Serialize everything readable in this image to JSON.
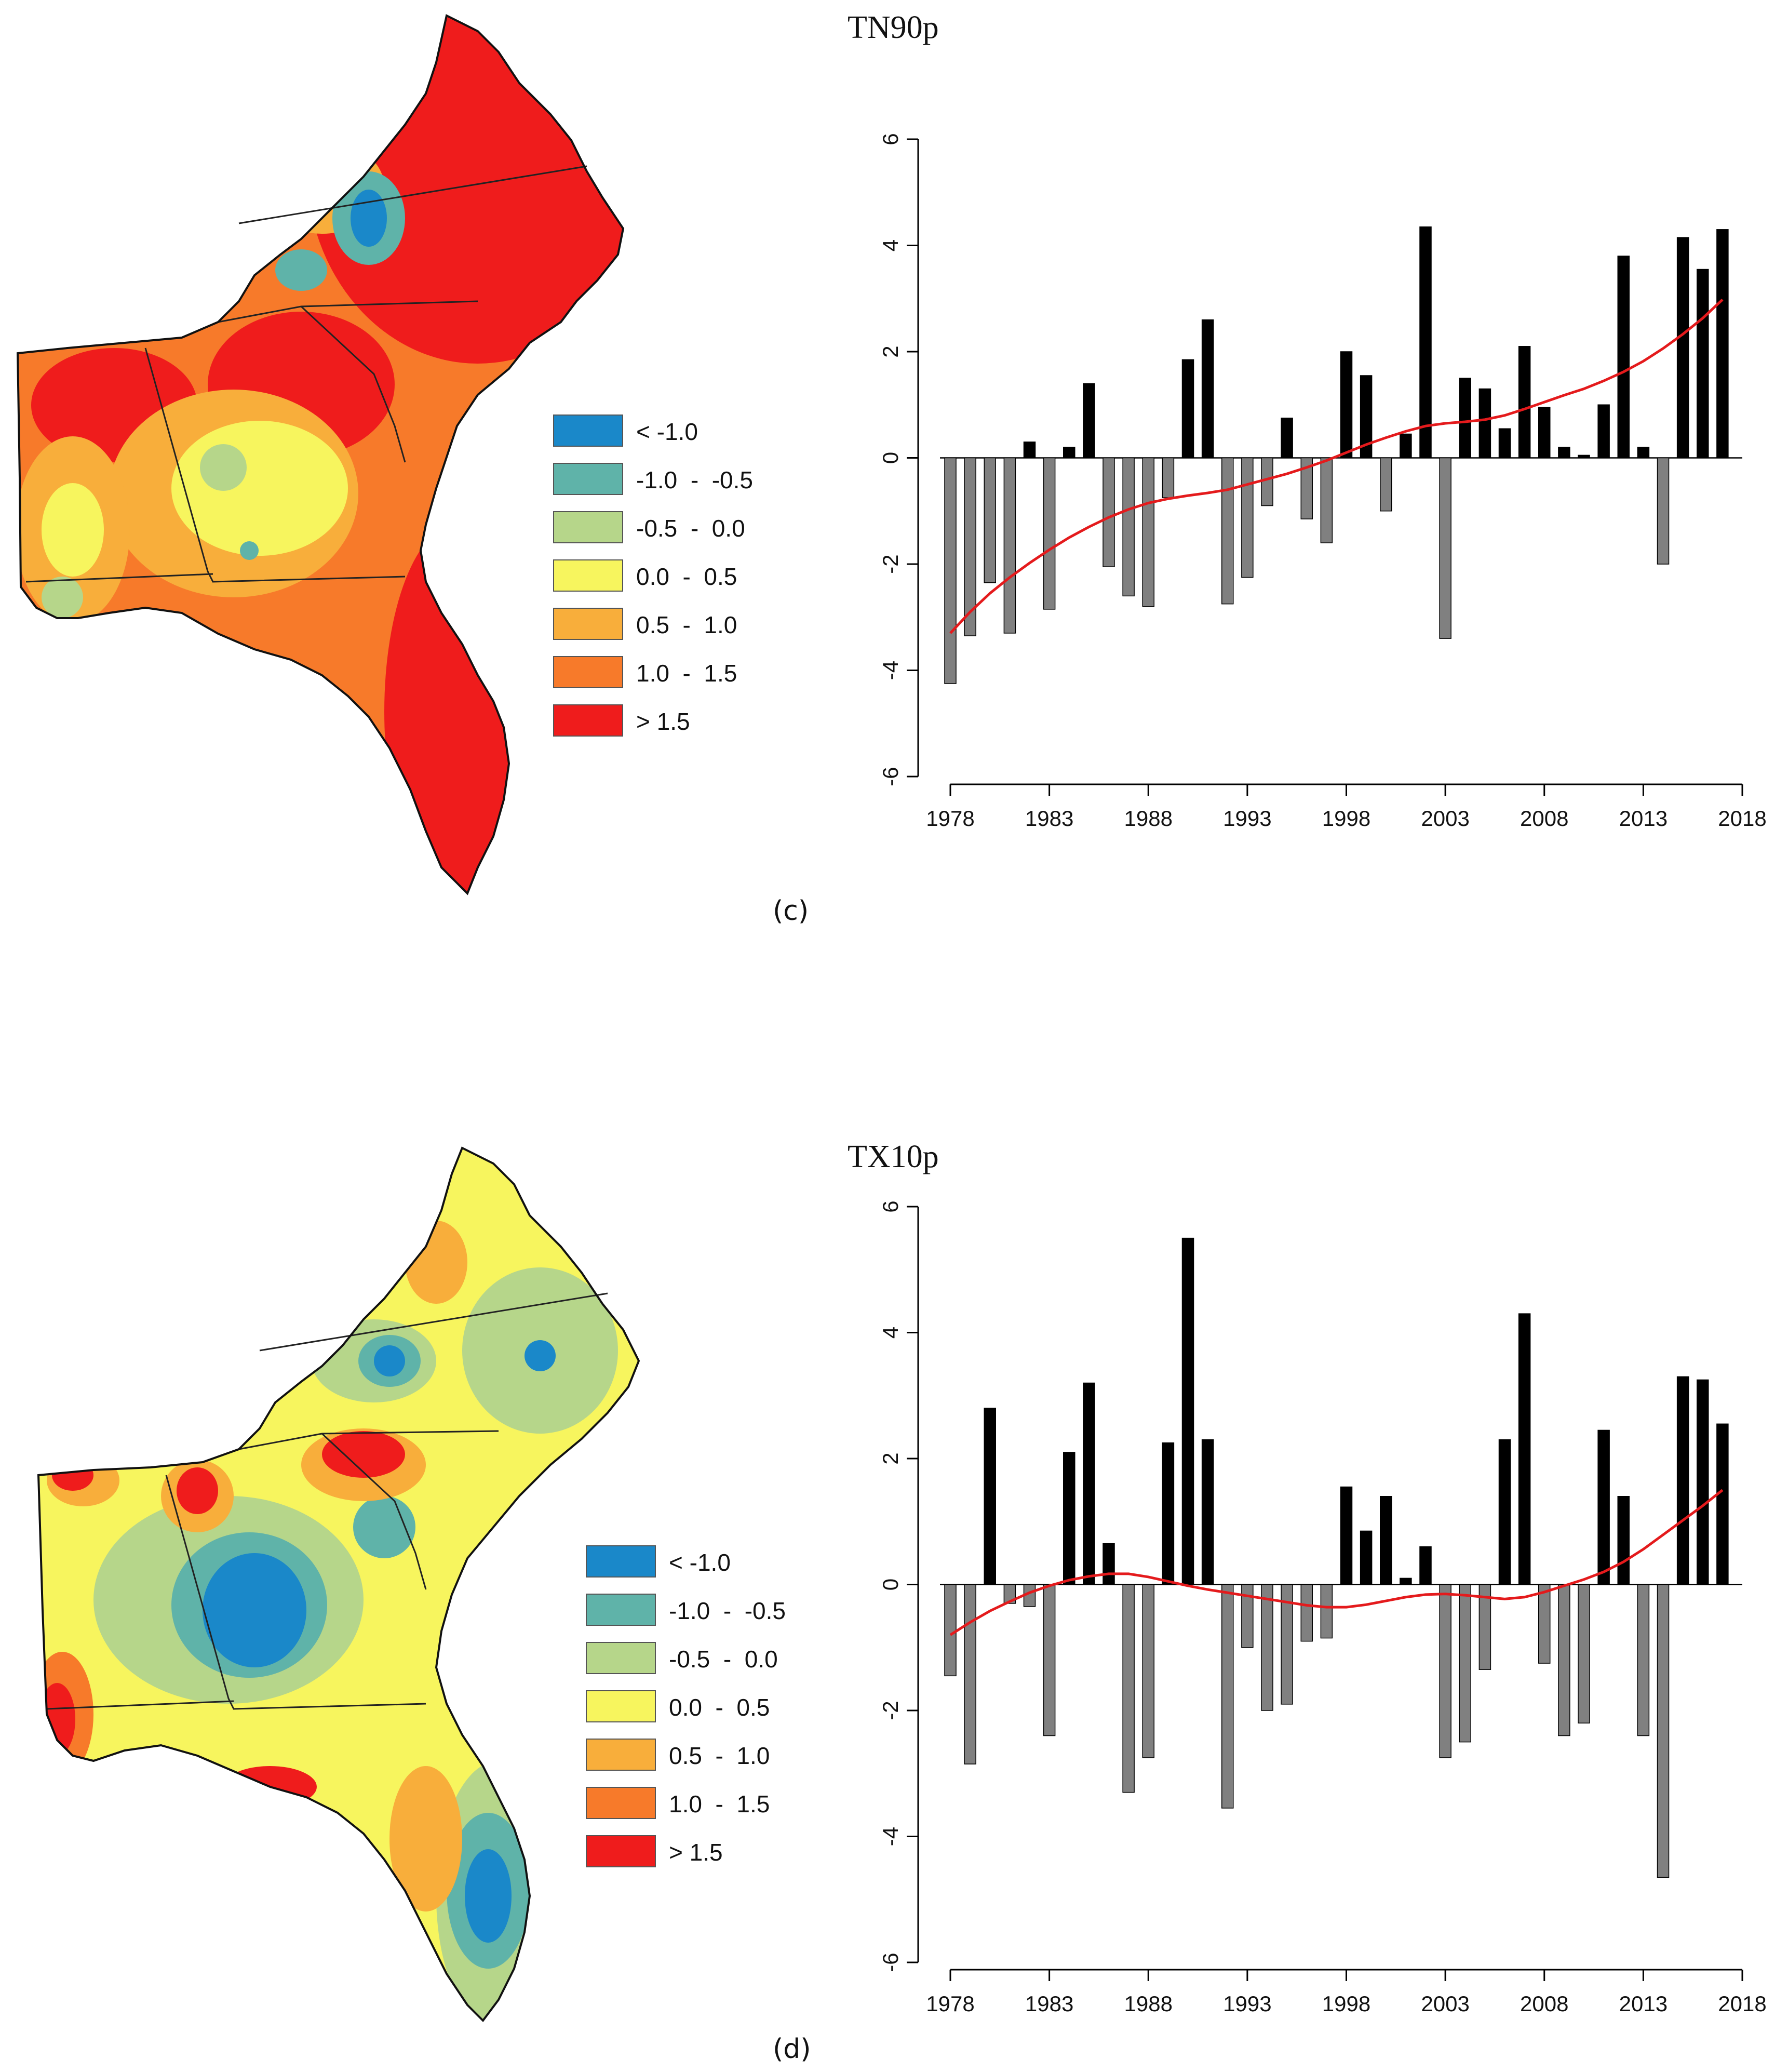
{
  "colors": {
    "positive_bar": "#000000",
    "negative_bar": "#808080",
    "trend_line": "#e41a1c",
    "legend": [
      "#1a88c9",
      "#5fb3a9",
      "#b6d68a",
      "#f7f55e",
      "#f8ae3b",
      "#f77a2a",
      "#ef1c1c"
    ]
  },
  "legend_labels": [
    "< -1.0",
    "-1.0  -  -0.5",
    "-0.5  -  0.0",
    "0.0  -  0.5",
    "0.5  -  1.0",
    "1.0  -  1.5",
    "> 1.5"
  ],
  "panels": [
    {
      "label": "(c)",
      "title": "TN90p"
    },
    {
      "label": "(d)",
      "title": "TX10p"
    }
  ],
  "chart_data": [
    {
      "type": "bar",
      "title": "TN90p",
      "x": [
        1978,
        1979,
        1980,
        1981,
        1982,
        1983,
        1984,
        1985,
        1986,
        1987,
        1988,
        1989,
        1990,
        1991,
        1992,
        1993,
        1994,
        1995,
        1996,
        1997,
        1998,
        1999,
        2000,
        2001,
        2002,
        2003,
        2004,
        2005,
        2006,
        2007,
        2008,
        2009,
        2010,
        2011,
        2012,
        2013,
        2014,
        2015,
        2016,
        2017
      ],
      "values": [
        -4.25,
        -3.35,
        -2.35,
        -3.3,
        0.3,
        -2.85,
        0.2,
        1.4,
        -2.05,
        -2.6,
        -2.8,
        -0.75,
        1.85,
        2.6,
        -2.75,
        -2.25,
        -0.9,
        0.75,
        -1.15,
        -1.6,
        2.0,
        1.55,
        -1.0,
        0.45,
        4.35,
        -3.4,
        1.5,
        1.3,
        0.55,
        2.1,
        0.95,
        0.2,
        0.05,
        1.0,
        3.8,
        0.2,
        -2.0,
        4.15,
        3.55,
        4.3
      ],
      "trend": [
        -3.3,
        -2.9,
        -2.55,
        -2.25,
        -1.98,
        -1.73,
        -1.5,
        -1.3,
        -1.12,
        -0.97,
        -0.85,
        -0.77,
        -0.71,
        -0.66,
        -0.6,
        -0.5,
        -0.4,
        -0.3,
        -0.18,
        -0.05,
        0.1,
        0.25,
        0.38,
        0.5,
        0.6,
        0.65,
        0.68,
        0.72,
        0.8,
        0.92,
        1.05,
        1.18,
        1.3,
        1.45,
        1.62,
        1.82,
        2.06,
        2.33,
        2.63,
        2.98
      ],
      "xticks": [
        1978,
        1983,
        1988,
        1993,
        1998,
        2003,
        2008,
        2013,
        2018
      ],
      "yticks": [
        -6,
        -4,
        -2,
        0,
        2,
        4,
        6
      ],
      "ylim": [
        -6,
        6
      ],
      "xlabel": "",
      "ylabel": ""
    },
    {
      "type": "bar",
      "title": "TX10p",
      "x": [
        1978,
        1979,
        1980,
        1981,
        1982,
        1983,
        1984,
        1985,
        1986,
        1987,
        1988,
        1989,
        1990,
        1991,
        1992,
        1993,
        1994,
        1995,
        1996,
        1997,
        1998,
        1999,
        2000,
        2001,
        2002,
        2003,
        2004,
        2005,
        2006,
        2007,
        2008,
        2009,
        2010,
        2011,
        2012,
        2013,
        2014,
        2015,
        2016,
        2017
      ],
      "values": [
        -1.45,
        -2.85,
        2.8,
        -0.3,
        -0.35,
        -2.4,
        2.1,
        3.2,
        0.65,
        -3.3,
        -2.75,
        2.25,
        5.5,
        2.3,
        -3.55,
        -1.0,
        -2.0,
        -1.9,
        -0.9,
        -0.85,
        1.55,
        0.85,
        1.4,
        0.1,
        0.6,
        -2.75,
        -2.5,
        -1.35,
        2.3,
        4.3,
        -1.25,
        -2.4,
        -2.2,
        2.45,
        1.4,
        -2.4,
        -4.65,
        3.3,
        3.25,
        2.55
      ],
      "trend": [
        -0.8,
        -0.6,
        -0.42,
        -0.27,
        -0.13,
        -0.02,
        0.07,
        0.13,
        0.17,
        0.17,
        0.12,
        0.05,
        -0.02,
        -0.08,
        -0.13,
        -0.18,
        -0.23,
        -0.28,
        -0.33,
        -0.36,
        -0.36,
        -0.32,
        -0.26,
        -0.2,
        -0.16,
        -0.15,
        -0.17,
        -0.2,
        -0.23,
        -0.2,
        -0.12,
        -0.02,
        0.08,
        0.2,
        0.36,
        0.56,
        0.79,
        1.02,
        1.25,
        1.5
      ],
      "xticks": [
        1978,
        1983,
        1988,
        1993,
        1998,
        2003,
        2008,
        2013,
        2018
      ],
      "yticks": [
        -6,
        -4,
        -2,
        0,
        2,
        4,
        6
      ],
      "ylim": [
        -6,
        6
      ],
      "xlabel": "",
      "ylabel": ""
    }
  ]
}
